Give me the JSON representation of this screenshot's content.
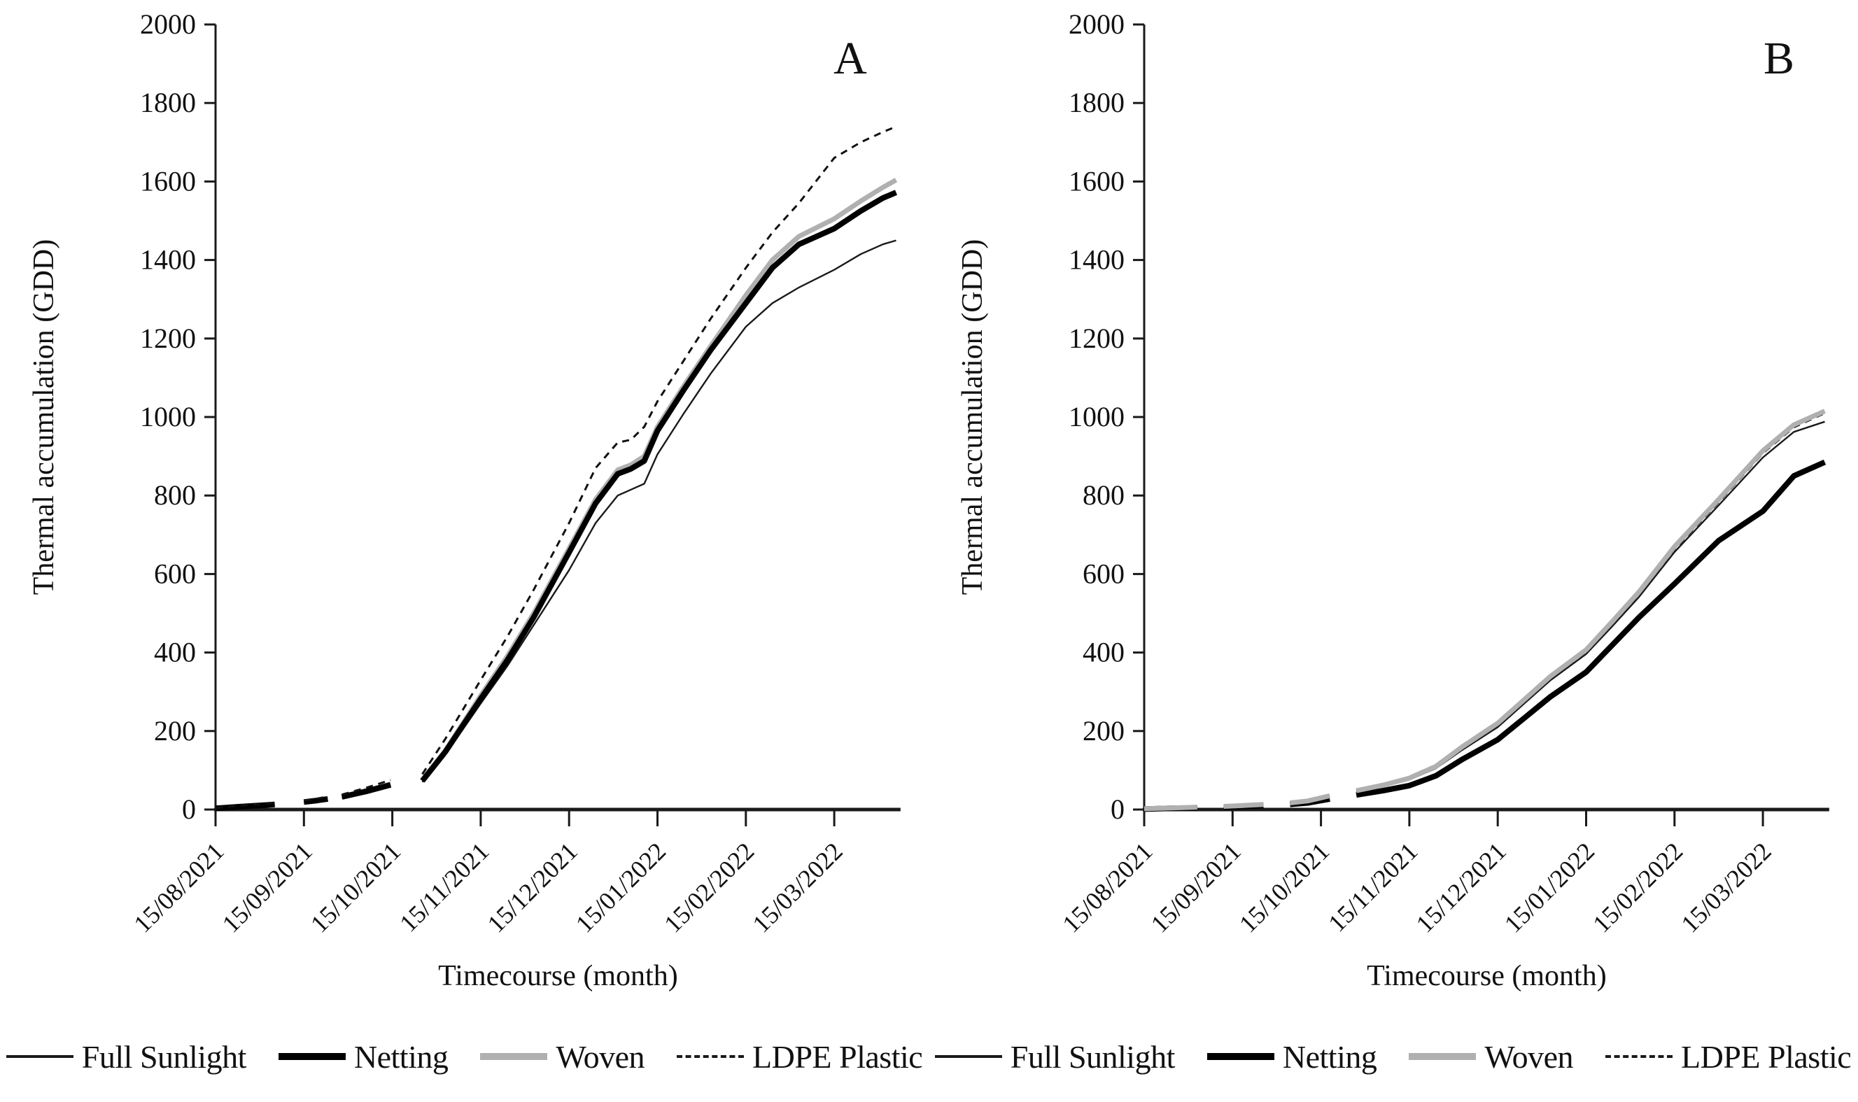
{
  "figure": {
    "y_axis_title": "Thermal accumulation (GDD)",
    "x_axis_title": "Timecourse (month)"
  },
  "legend": {
    "items": [
      {
        "label": "Full Sunlight",
        "style": "thin",
        "color": "#1a1a1a"
      },
      {
        "label": "Netting",
        "style": "thick",
        "color": "#000000"
      },
      {
        "label": "Woven",
        "style": "thick-gray",
        "color": "#b0b0b0"
      },
      {
        "label": "LDPE Plastic",
        "style": "dashed",
        "color": "#1a1a1a"
      }
    ]
  },
  "chart_data": [
    {
      "type": "line",
      "panel": "A",
      "xlabel": "Timecourse (month)",
      "ylabel": "Thermal accumulation (GDD)",
      "ylim": [
        0,
        2000
      ],
      "yticks": [
        0,
        200,
        400,
        600,
        800,
        1000,
        1200,
        1400,
        1600,
        1800,
        2000
      ],
      "x_tick_labels": [
        "15/08/2021",
        "15/09/2021",
        "15/10/2021",
        "15/11/2021",
        "15/12/2021",
        "15/01/2022",
        "15/02/2022",
        "15/03/2022"
      ],
      "x_tick_months": [
        0,
        1,
        2,
        3,
        4,
        5,
        6,
        7
      ],
      "xlim": [
        0,
        7.75
      ],
      "grid": false,
      "legend_position": "bottom",
      "series": [
        {
          "name": "Full Sunlight",
          "color": "#1a1a1a",
          "width": 2.4,
          "dash": null,
          "x": [
            0,
            0.25,
            0.55,
            0.67,
            0.85,
            1.0,
            1.15,
            1.27,
            1.36,
            1.43,
            1.7,
            1.98,
            2.15,
            2.34,
            2.6,
            3.0,
            3.3,
            3.6,
            4.0,
            4.3,
            4.55,
            4.7,
            4.85,
            5.0,
            5.3,
            5.6,
            6.0,
            6.3,
            6.6,
            7.0,
            7.3,
            7.55,
            7.7
          ],
          "y": [
            2,
            6,
            10,
            12,
            null,
            17,
            21,
            25,
            null,
            29,
            43,
            60,
            null,
            70,
            140,
            270,
            365,
            470,
            610,
            730,
            800,
            815,
            830,
            905,
            1010,
            1110,
            1230,
            1290,
            1330,
            1375,
            1415,
            1440,
            1450
          ]
        },
        {
          "name": "Woven",
          "color": "#b0b0b0",
          "width": 7,
          "dash": null,
          "x": [
            0,
            0.25,
            0.55,
            0.67,
            0.85,
            1.0,
            1.15,
            1.27,
            1.36,
            1.43,
            1.7,
            1.98,
            2.15,
            2.34,
            2.6,
            3.0,
            3.3,
            3.6,
            4.0,
            4.3,
            4.55,
            4.7,
            4.85,
            5.0,
            5.3,
            5.6,
            6.0,
            6.3,
            6.6,
            7.0,
            7.3,
            7.55,
            7.7
          ],
          "y": [
            3,
            8,
            12,
            14,
            null,
            20,
            24,
            28,
            null,
            33,
            48,
            65,
            null,
            75,
            150,
            290,
            390,
            500,
            665,
            790,
            865,
            878,
            900,
            975,
            1080,
            1180,
            1310,
            1400,
            1460,
            1505,
            1550,
            1585,
            1604
          ]
        },
        {
          "name": "Netting",
          "color": "#000000",
          "width": 8,
          "dash": null,
          "x": [
            0,
            0.25,
            0.55,
            0.67,
            0.85,
            1.0,
            1.15,
            1.27,
            1.36,
            1.43,
            1.7,
            1.98,
            2.15,
            2.34,
            2.6,
            3.0,
            3.3,
            3.6,
            4.0,
            4.3,
            4.55,
            4.7,
            4.85,
            5.0,
            5.3,
            5.6,
            6.0,
            6.3,
            6.6,
            7.0,
            7.3,
            7.55,
            7.7
          ],
          "y": [
            3,
            7,
            11,
            13,
            null,
            19,
            23,
            27,
            null,
            32,
            46,
            63,
            null,
            73,
            147,
            282,
            380,
            490,
            655,
            780,
            855,
            868,
            888,
            965,
            1070,
            1170,
            1290,
            1380,
            1440,
            1480,
            1525,
            1558,
            1572
          ]
        },
        {
          "name": "LDPE Plastic",
          "color": "#111111",
          "width": 3,
          "dash": "10 8",
          "x": [
            0,
            0.25,
            0.55,
            0.67,
            0.85,
            1.0,
            1.15,
            1.27,
            1.36,
            1.43,
            1.7,
            1.98,
            2.15,
            2.34,
            2.6,
            3.0,
            3.3,
            3.6,
            4.0,
            4.3,
            4.55,
            4.7,
            4.85,
            5.0,
            5.3,
            5.6,
            6.0,
            6.3,
            6.6,
            7.0,
            7.3,
            7.55,
            7.7
          ],
          "y": [
            4,
            10,
            14,
            17,
            null,
            23,
            28,
            33,
            null,
            38,
            55,
            75,
            null,
            90,
            180,
            330,
            440,
            560,
            730,
            870,
            935,
            942,
            975,
            1040,
            1145,
            1250,
            1380,
            1470,
            1545,
            1660,
            1700,
            1726,
            1740
          ]
        }
      ]
    },
    {
      "type": "line",
      "panel": "B",
      "xlabel": "Timecourse (month)",
      "ylabel": "Thermal accumulation (GDD)",
      "ylim": [
        0,
        2000
      ],
      "yticks": [
        0,
        200,
        400,
        600,
        800,
        1000,
        1200,
        1400,
        1600,
        1800,
        2000
      ],
      "x_tick_labels": [
        "15/08/2021",
        "15/09/2021",
        "15/10/2021",
        "15/11/2021",
        "15/12/2021",
        "15/01/2022",
        "15/02/2022",
        "15/03/2022"
      ],
      "x_tick_months": [
        0,
        1,
        2,
        3,
        4,
        5,
        6,
        7
      ],
      "xlim": [
        0,
        7.75
      ],
      "grid": false,
      "legend_position": "bottom",
      "series": [
        {
          "name": "LDPE Plastic",
          "color": "#111111",
          "width": 3,
          "dash": "10 8",
          "x": [
            0,
            0.3,
            0.6,
            0.75,
            0.9,
            1.1,
            1.35,
            1.5,
            1.65,
            1.85,
            2.1,
            2.25,
            2.4,
            2.7,
            3.0,
            3.3,
            3.6,
            4.0,
            4.3,
            4.6,
            5.0,
            5.3,
            5.6,
            6.0,
            6.5,
            7.0,
            7.35,
            7.7
          ],
          "y": [
            2,
            4,
            6,
            null,
            8,
            10,
            13,
            null,
            17,
            21,
            34,
            null,
            46,
            60,
            77,
            107,
            156,
            215,
            275,
            335,
            402,
            474,
            549,
            663,
            783,
            908,
            974,
            1010
          ]
        },
        {
          "name": "Netting",
          "color": "#000000",
          "width": 8,
          "dash": null,
          "x": [
            0,
            0.3,
            0.6,
            0.75,
            0.9,
            1.1,
            1.35,
            1.5,
            1.65,
            1.85,
            2.1,
            2.25,
            2.4,
            2.7,
            3.0,
            3.3,
            3.6,
            4.0,
            4.3,
            4.6,
            5.0,
            5.3,
            5.6,
            6.0,
            6.5,
            7.0,
            7.35,
            7.7
          ],
          "y": [
            1,
            3,
            4,
            null,
            6,
            8,
            10,
            null,
            13,
            17,
            27,
            null,
            37,
            48,
            61,
            86,
            128,
            178,
            233,
            288,
            350,
            420,
            490,
            575,
            685,
            760,
            850,
            885
          ]
        },
        {
          "name": "Full Sunlight",
          "color": "#1a1a1a",
          "width": 2.4,
          "dash": null,
          "x": [
            0,
            0.3,
            0.6,
            0.75,
            0.9,
            1.1,
            1.35,
            1.5,
            1.65,
            1.85,
            2.1,
            2.25,
            2.4,
            2.7,
            3.0,
            3.3,
            3.6,
            4.0,
            4.3,
            4.6,
            5.0,
            5.3,
            5.6,
            6.0,
            6.5,
            7.0,
            7.35,
            7.7
          ],
          "y": [
            2,
            4,
            6,
            null,
            7,
            9,
            12,
            null,
            16,
            21,
            33,
            null,
            45,
            59,
            76,
            105,
            152,
            210,
            270,
            330,
            396,
            468,
            542,
            656,
            775,
            897,
            962,
            988
          ]
        },
        {
          "name": "Woven",
          "color": "#b0b0b0",
          "width": 7,
          "dash": null,
          "x": [
            0,
            0.3,
            0.6,
            0.75,
            0.9,
            1.1,
            1.35,
            1.5,
            1.65,
            1.85,
            2.1,
            2.25,
            2.4,
            2.7,
            3.0,
            3.3,
            3.6,
            4.0,
            4.3,
            4.6,
            5.0,
            5.3,
            5.6,
            6.0,
            6.5,
            7.0,
            7.35,
            7.7
          ],
          "y": [
            2,
            4,
            6,
            null,
            8,
            10,
            13,
            null,
            17,
            22,
            35,
            null,
            48,
            62,
            80,
            110,
            160,
            220,
            280,
            340,
            407,
            480,
            555,
            670,
            790,
            914,
            980,
            1015
          ]
        }
      ]
    }
  ]
}
